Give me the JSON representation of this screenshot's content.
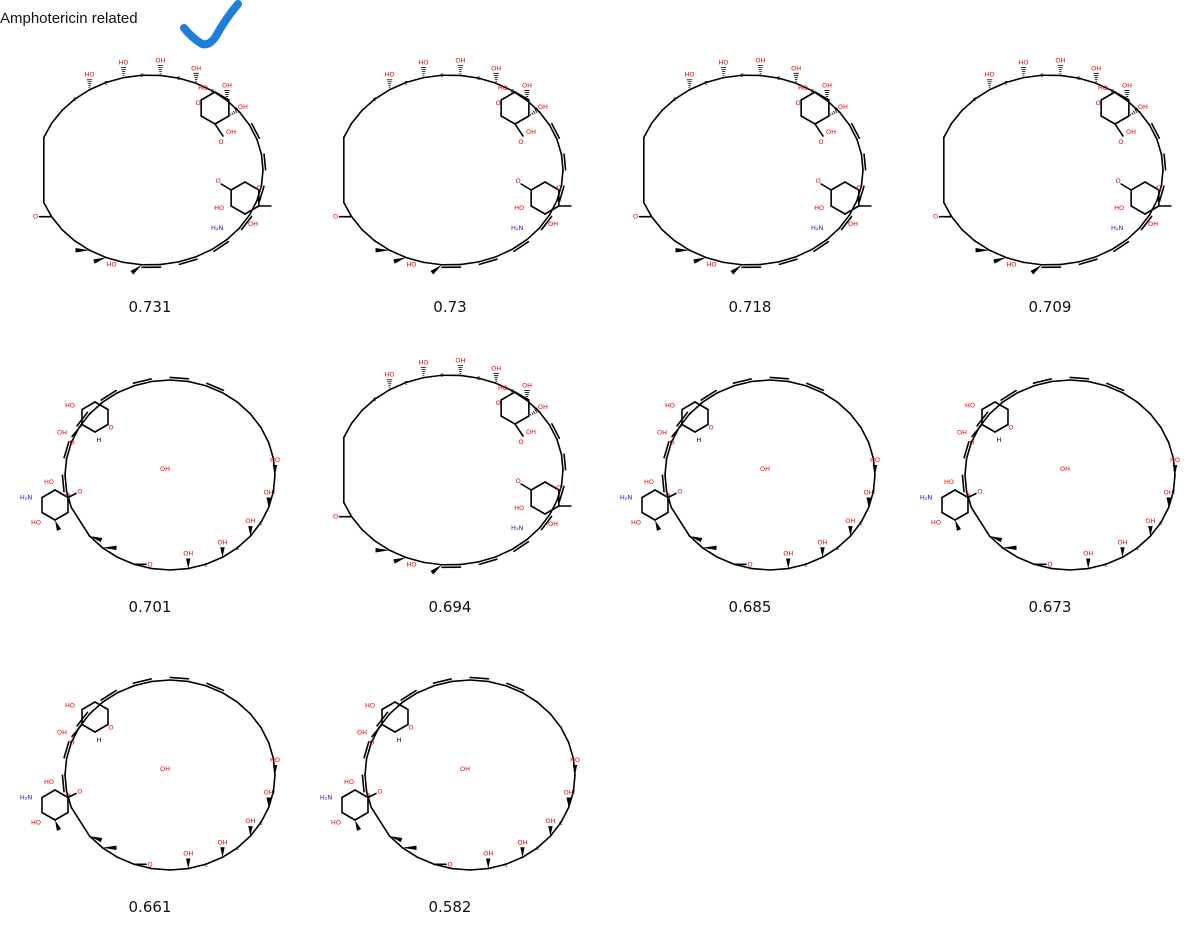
{
  "header": {
    "title": "Amphotericin related",
    "check_color": "#1e7fd9"
  },
  "atom_colors": {
    "bond": "#000000",
    "oxygen": "#e00000",
    "nitrogen": "#2020c0"
  },
  "molecules": [
    {
      "score": "0.731",
      "layout": "A"
    },
    {
      "score": "0.73",
      "layout": "A"
    },
    {
      "score": "0.718",
      "layout": "A"
    },
    {
      "score": "0.709",
      "layout": "A"
    },
    {
      "score": "0.701",
      "layout": "B"
    },
    {
      "score": "0.694",
      "layout": "A"
    },
    {
      "score": "0.685",
      "layout": "B"
    },
    {
      "score": "0.673",
      "layout": "B"
    },
    {
      "score": "0.661",
      "layout": "B"
    },
    {
      "score": "0.582",
      "layout": "B"
    }
  ]
}
